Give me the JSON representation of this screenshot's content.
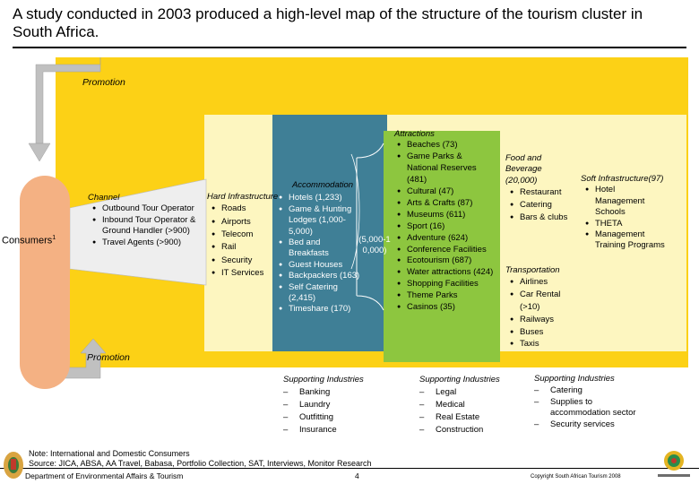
{
  "title": "A study conducted in 2003 produced a high-level map of the structure of the tourism cluster in South Africa.",
  "promotion_top": "Promotion",
  "promotion_bottom": "Promotion",
  "consumers": "Consumers",
  "consumers_sup": "1",
  "channel": {
    "heading": "Channel",
    "items": [
      "Outbound Tour Operator",
      "Inbound Tour Operator & Ground Handler (>900)",
      "Travel Agents (>900)"
    ]
  },
  "hard_infrastructure": {
    "heading": "Hard Infrastructure",
    "items": [
      "Roads",
      "Airports",
      "Telecom",
      "Rail",
      "Security",
      "IT Services"
    ]
  },
  "accommodation": {
    "heading": "Accommodation",
    "items": [
      "Hotels (1,233)",
      "Game & Hunting Lodges (1,000-5,000)",
      "Bed and Breakfasts",
      "Guest Houses",
      "Backpackers (163)",
      "Self Catering (2,415)",
      "Timeshare (170)"
    ],
    "bracket": "(5,000-10,000)"
  },
  "attractions": {
    "heading": "Attractions",
    "items": [
      "Beaches (73)",
      "Game Parks & National Reserves (481)",
      "Cultural (47)",
      "Arts & Crafts (87)",
      "Museums (611)",
      "Sport (16)",
      "Adventure (624)",
      "Conference Facilities",
      "Ecotourism (687)",
      "Water attractions (424)",
      "Shopping Facilities",
      "Theme Parks",
      "Casinos (35)"
    ]
  },
  "food": {
    "heading": "Food and Beverage (20,000)",
    "items": [
      "Restaurant",
      "Catering",
      "Bars & clubs"
    ]
  },
  "transportation": {
    "heading": "Transportation",
    "items": [
      "Airlines",
      "Car Rental (>10)",
      "Railways",
      "Buses",
      "Taxis"
    ]
  },
  "soft_infrastructure": {
    "heading": "Soft Infrastructure(97)",
    "items": [
      "Hotel Management Schools",
      "THETA",
      "Management Training Programs"
    ]
  },
  "supporting_1": {
    "heading": "Supporting Industries",
    "items": [
      "Banking",
      "Laundry",
      "Outfitting",
      "Insurance"
    ]
  },
  "supporting_2": {
    "heading": "Supporting Industries",
    "items": [
      "Legal",
      "Medical",
      "Real Estate",
      "Construction"
    ]
  },
  "supporting_3": {
    "heading": "Supporting Industries",
    "items": [
      "Catering",
      "Supplies to accommodation sector",
      "Security services"
    ]
  },
  "note": "Note: International and Domestic Consumers",
  "source": "Source: JICA, ABSA, AA Travel, Babasa, Portfolio Collection, SAT, Interviews, Monitor Research",
  "department": "Department of Environmental Affairs & Tourism",
  "page_number": "4",
  "copyright": "Copyright South African Tourism 2008",
  "colors": {
    "outer_box": "#fcd116",
    "inner_box": "#fdf6c0",
    "accommodation_box": "#3f7f96",
    "attractions_box": "#8dc63f",
    "consumers": "#f4b183",
    "arrow": "#c0c0c0"
  }
}
